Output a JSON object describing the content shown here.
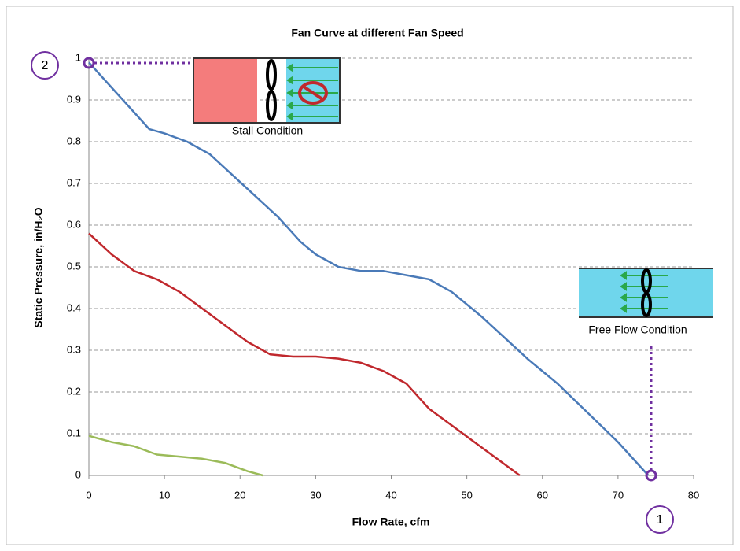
{
  "chart_data": {
    "type": "line",
    "title": "Fan Curve at different Fan Speed",
    "x_label": "Flow Rate, cfm",
    "y_label": "Static Pressure,  in/H₂O",
    "xlim": [
      0,
      80
    ],
    "xticks": [
      0,
      10,
      20,
      30,
      40,
      50,
      60,
      70,
      80
    ],
    "ylim": [
      0,
      1
    ],
    "yticks": [
      0,
      0.1,
      0.2,
      0.3,
      0.4,
      0.5,
      0.6,
      0.7,
      0.8,
      0.9,
      1
    ],
    "grid": true,
    "series": [
      {
        "color": "#4a7ab8",
        "x": [
          0,
          3,
          6,
          8,
          10,
          13,
          16,
          19,
          22,
          25,
          28,
          30,
          33,
          36,
          39,
          42,
          45,
          48,
          52,
          55,
          58,
          62,
          66,
          70,
          74
        ],
        "values": [
          0.99,
          0.93,
          0.87,
          0.83,
          0.82,
          0.8,
          0.77,
          0.72,
          0.67,
          0.62,
          0.56,
          0.53,
          0.5,
          0.49,
          0.49,
          0.48,
          0.47,
          0.44,
          0.38,
          0.33,
          0.28,
          0.22,
          0.15,
          0.08,
          0
        ]
      },
      {
        "color": "#c0282d",
        "x": [
          0,
          3,
          6,
          9,
          12,
          15,
          18,
          21,
          24,
          27,
          30,
          33,
          36,
          39,
          42,
          45,
          48,
          51,
          54,
          57
        ],
        "values": [
          0.58,
          0.53,
          0.49,
          0.47,
          0.44,
          0.4,
          0.36,
          0.32,
          0.29,
          0.285,
          0.285,
          0.28,
          0.27,
          0.25,
          0.22,
          0.16,
          0.12,
          0.08,
          0.04,
          0
        ]
      },
      {
        "color": "#9bbb59",
        "x": [
          0,
          3,
          6,
          9,
          12,
          15,
          18,
          21,
          23
        ],
        "values": [
          0.095,
          0.08,
          0.07,
          0.05,
          0.045,
          0.04,
          0.03,
          0.01,
          0
        ]
      }
    ],
    "annotations": [
      "Stall Condition",
      "Free Flow Condition",
      "1",
      "2"
    ]
  }
}
